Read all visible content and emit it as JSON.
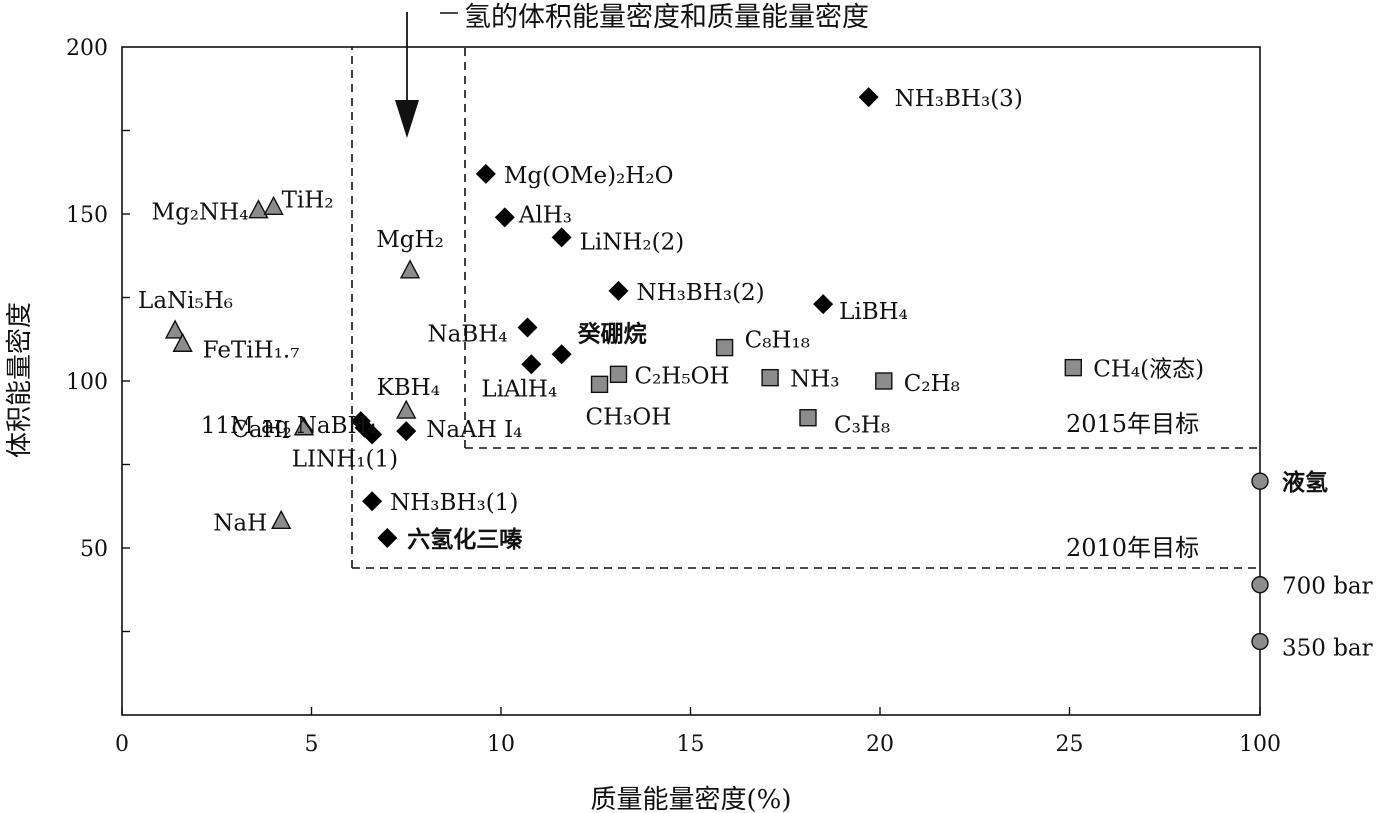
{
  "chart_data": {
    "type": "scatter",
    "title": "氢的体积能量密度和质量能量密度",
    "xlabel": "质量能量密度(%)",
    "ylabel": "体积能量密度",
    "ylim": [
      0,
      200
    ],
    "x_ticks": [
      "0",
      "5",
      "10",
      "15",
      "20",
      "25",
      "100"
    ],
    "y_ticks": [
      "50",
      "100",
      "150",
      "200"
    ],
    "marker_colors": {
      "triangle": "#8c8c8c",
      "diamond": "#000000",
      "square": "#8c8c8c",
      "circle": "#8c8c8c"
    },
    "points": [
      {
        "label": "Mg₂NH₄",
        "x": 3.6,
        "y": 151,
        "marker": "triangle"
      },
      {
        "label": "TiH₂",
        "x": 4.0,
        "y": 152,
        "marker": "triangle"
      },
      {
        "label": "MgH₂",
        "x": 7.6,
        "y": 133,
        "marker": "triangle"
      },
      {
        "label": "LaNi₅H₆",
        "x": 1.4,
        "y": 115,
        "marker": "triangle"
      },
      {
        "label": "FeTiH₁.₇",
        "x": 1.6,
        "y": 111,
        "marker": "triangle"
      },
      {
        "label": "KBH₄",
        "x": 7.5,
        "y": 91,
        "marker": "triangle"
      },
      {
        "label": "CaH₂",
        "x": 4.8,
        "y": 86,
        "marker": "triangle"
      },
      {
        "label": "NaH",
        "x": 4.2,
        "y": 58,
        "marker": "triangle"
      },
      {
        "label": "NH₃BH₃(3)",
        "x": 19.7,
        "y": 185,
        "marker": "diamond"
      },
      {
        "label": "Mg(OMe)₂H₂O",
        "x": 9.6,
        "y": 162,
        "marker": "diamond"
      },
      {
        "label": "AlH₃",
        "x": 10.1,
        "y": 149,
        "marker": "diamond"
      },
      {
        "label": "LiNH₂(2)",
        "x": 11.6,
        "y": 143,
        "marker": "diamond"
      },
      {
        "label": "NH₃BH₃(2)",
        "x": 13.1,
        "y": 127,
        "marker": "diamond"
      },
      {
        "label": "LiBH₄",
        "x": 18.5,
        "y": 123,
        "marker": "diamond"
      },
      {
        "label": "NaBH₄",
        "x": 10.7,
        "y": 116,
        "marker": "diamond"
      },
      {
        "label": "癸硼烷",
        "x": 11.6,
        "y": 108,
        "marker": "diamond"
      },
      {
        "label": "LiAlH₄",
        "x": 10.8,
        "y": 105,
        "marker": "diamond"
      },
      {
        "label": "11M aq NaBH₄",
        "x": 6.3,
        "y": 88,
        "marker": "diamond"
      },
      {
        "label": "",
        "x": 6.4,
        "y": 86,
        "marker": "diamond"
      },
      {
        "label": "LINH₁(1)",
        "x": 6.6,
        "y": 84,
        "marker": "diamond"
      },
      {
        "label": "NaAH I₄",
        "x": 7.5,
        "y": 85,
        "marker": "diamond"
      },
      {
        "label": "NH₃BH₃(1)",
        "x": 6.6,
        "y": 64,
        "marker": "diamond"
      },
      {
        "label": "六氢化三嗪",
        "x": 7.0,
        "y": 53,
        "marker": "diamond"
      },
      {
        "label": "C₈H₁₈",
        "x": 15.9,
        "y": 110,
        "marker": "square"
      },
      {
        "label": "C₂H₅OH",
        "x": 13.1,
        "y": 102,
        "marker": "square"
      },
      {
        "label": "CH₃OH",
        "x": 12.6,
        "y": 99,
        "marker": "square"
      },
      {
        "label": "NH₃",
        "x": 17.1,
        "y": 101,
        "marker": "square"
      },
      {
        "label": "C₂H₈",
        "x": 20.1,
        "y": 100,
        "marker": "square"
      },
      {
        "label": "C₃H₈",
        "x": 18.1,
        "y": 89,
        "marker": "square"
      },
      {
        "label": "CH₄(液态)",
        "x": 25.1,
        "y": 104,
        "marker": "square"
      },
      {
        "label": "液氢",
        "x": 100,
        "y": 70,
        "marker": "circle"
      },
      {
        "label": "700 bar",
        "x": 100,
        "y": 39,
        "marker": "circle"
      },
      {
        "label": "350 bar",
        "x": 100,
        "y": 22,
        "marker": "circle"
      }
    ],
    "annotations": [
      {
        "text": "2015年目标",
        "y": 80
      },
      {
        "text": "2010年目标",
        "y": 45
      }
    ]
  }
}
